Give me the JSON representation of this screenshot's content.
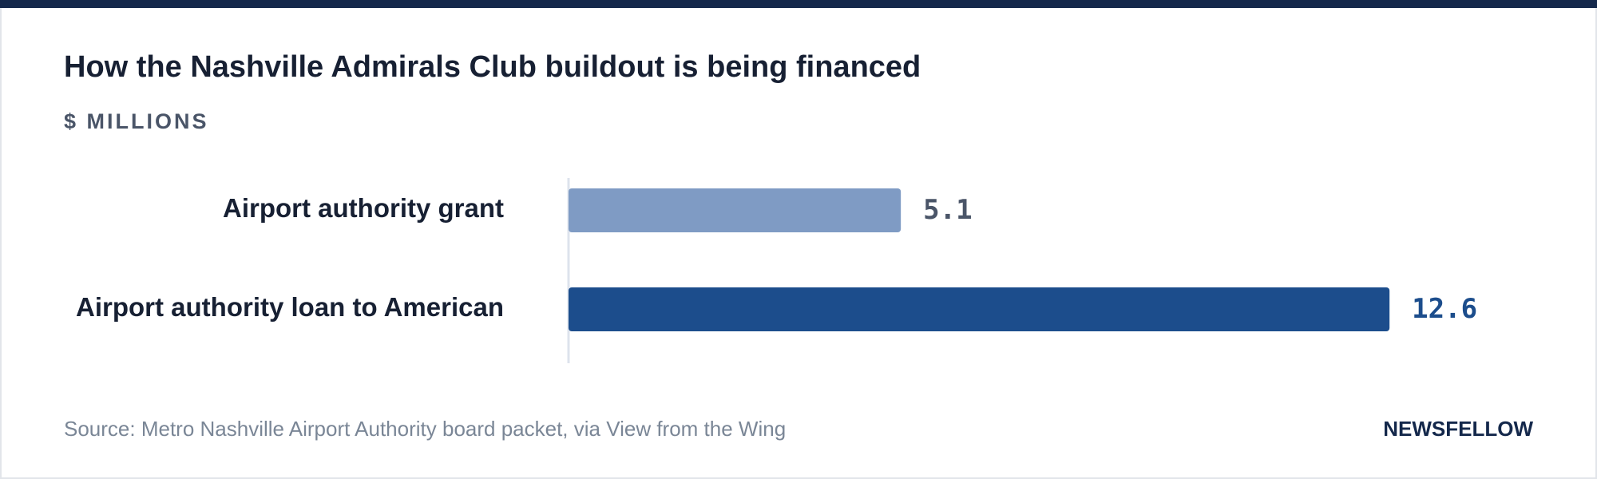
{
  "chart_data": {
    "type": "bar",
    "orientation": "horizontal",
    "title": "How the Nashville Admirals Club buildout is being financed",
    "subtitle": "$ MILLIONS",
    "categories": [
      "Airport authority grant",
      "Airport authority loan to American"
    ],
    "values": [
      5.1,
      12.6
    ],
    "colors": [
      "#7f9bc4",
      "#1c4d8c"
    ],
    "label_colors": [
      "#4a5568",
      "#1c4d8c"
    ],
    "source": "Source: Metro Nashville Airport Authority board packet, via View from the Wing",
    "brand": "NEWSFELLOW"
  }
}
